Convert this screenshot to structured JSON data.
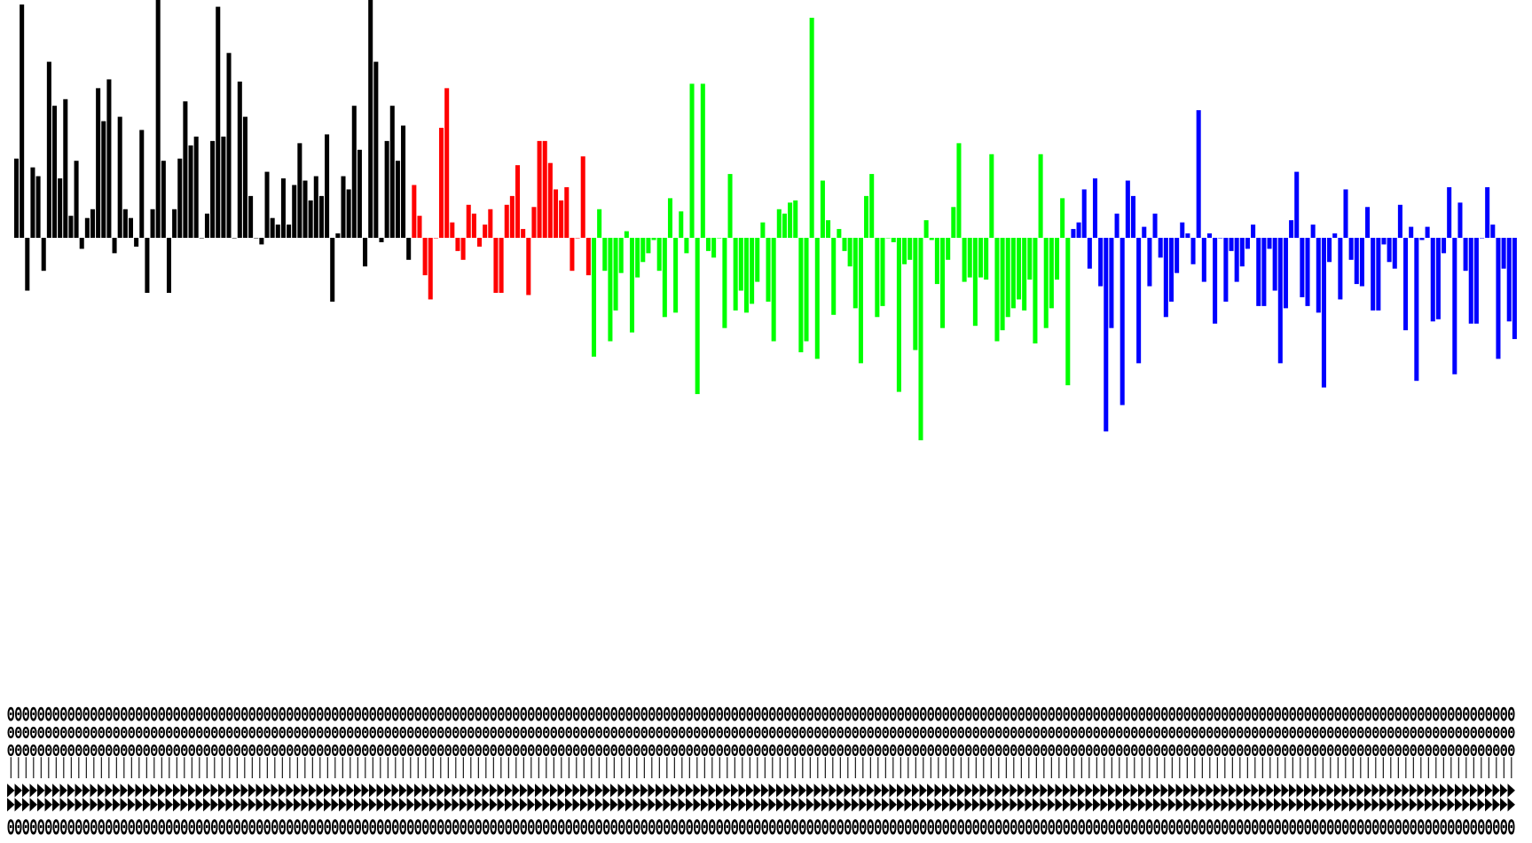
{
  "chart_data": {
    "type": "bar",
    "title": "",
    "xlabel": "",
    "ylabel": "",
    "ylim": [
      -1.0,
      1.4
    ],
    "grid": false,
    "legend": "none",
    "axes_visible": false,
    "category_labels_note": "Rotated category tick labels are overprinted into illegible bands and cannot be transcribed.",
    "series": [
      {
        "color": "#000000",
        "values": [
          0.36,
          1.06,
          -0.24,
          0.32,
          0.28,
          -0.15,
          0.8,
          0.6,
          0.27,
          0.63,
          0.1,
          0.35,
          -0.05,
          0.09,
          0.13,
          0.68,
          0.53,
          0.72,
          -0.07,
          0.55,
          0.13,
          0.09,
          -0.04,
          0.49,
          -0.25,
          0.13,
          1.25,
          0.35,
          -0.25,
          0.13,
          0.36,
          0.62,
          0.42,
          0.46,
          0.0,
          0.11,
          0.44,
          1.05,
          0.46,
          0.84,
          0.0,
          0.71,
          0.55,
          0.19,
          0.0,
          -0.03,
          0.3,
          0.09,
          0.06,
          0.27,
          0.06,
          0.24,
          0.43,
          0.26,
          0.17,
          0.28,
          0.19,
          0.47,
          -0.29,
          0.02,
          0.28,
          0.22,
          0.6,
          0.4,
          -0.13,
          1.1,
          0.8,
          -0.02,
          0.44,
          0.6,
          0.35,
          0.51,
          -0.1
        ],
        "comment": "Series 1 (black): values estimated from bar heights"
      },
      {
        "color": "#ff0000",
        "values": [
          0.24,
          0.1,
          -0.17,
          -0.28,
          0.0,
          0.5,
          0.68,
          0.07,
          -0.06,
          -0.1,
          0.15,
          0.11,
          -0.04,
          0.06,
          0.13,
          -0.25,
          -0.25,
          0.15,
          0.19,
          0.33,
          0.04,
          -0.26,
          0.14,
          0.44,
          0.44,
          0.34,
          0.22,
          0.17,
          0.23,
          -0.15,
          0.0,
          0.37,
          -0.17
        ],
        "comment": "Series 2 (red)"
      },
      {
        "color": "#00ff00",
        "values": [
          -0.54,
          0.13,
          -0.15,
          -0.47,
          -0.33,
          -0.16,
          0.03,
          -0.43,
          -0.18,
          -0.11,
          -0.07,
          -0.01,
          -0.15,
          -0.36,
          0.18,
          -0.34,
          0.12,
          -0.07,
          0.7,
          -0.71,
          0.7,
          -0.06,
          -0.09,
          0.0,
          -0.41,
          0.29,
          -0.33,
          -0.24,
          -0.34,
          -0.3,
          -0.2,
          0.07,
          -0.29,
          -0.47,
          0.13,
          0.11,
          0.16,
          0.17,
          -0.52,
          -0.47,
          1.0,
          -0.55,
          0.26,
          0.08,
          -0.35,
          0.04,
          -0.06,
          -0.13,
          -0.32,
          -0.57,
          0.19,
          0.29,
          -0.36,
          -0.31,
          0.0,
          -0.02,
          -0.7,
          -0.12,
          -0.1,
          -0.51,
          -0.92,
          0.08,
          -0.01,
          -0.21,
          -0.41,
          -0.1,
          0.14,
          0.43,
          -0.2,
          -0.18,
          -0.4,
          -0.18,
          -0.19,
          0.38,
          -0.47,
          -0.42,
          -0.36,
          -0.32,
          -0.28,
          -0.33,
          -0.19,
          -0.48,
          0.38,
          -0.41,
          -0.32,
          -0.19,
          0.18,
          -0.67
        ],
        "comment": "Series 3 (green)"
      },
      {
        "color": "#0000ff",
        "values": [
          0.04,
          0.07,
          0.22,
          -0.14,
          0.27,
          -0.22,
          -0.88,
          -0.41,
          0.11,
          -0.76,
          0.26,
          0.19,
          -0.57,
          0.05,
          -0.22,
          0.11,
          -0.09,
          -0.36,
          -0.29,
          -0.16,
          0.07,
          0.02,
          -0.12,
          0.58,
          -0.2,
          0.02,
          -0.39,
          0.0,
          -0.29,
          -0.06,
          -0.2,
          -0.13,
          -0.05,
          0.06,
          -0.31,
          -0.31,
          -0.05,
          -0.24,
          -0.57,
          -0.32,
          0.08,
          0.3,
          -0.27,
          -0.31,
          0.06,
          -0.34,
          -0.68,
          -0.11,
          0.02,
          -0.28,
          0.22,
          -0.1,
          -0.21,
          -0.22,
          0.14,
          -0.33,
          -0.33,
          -0.03,
          -0.11,
          -0.14,
          0.15,
          -0.42,
          0.05,
          -0.65,
          -0.01,
          0.05,
          -0.38,
          -0.37,
          -0.07,
          0.23,
          -0.62,
          0.16,
          -0.15,
          -0.39,
          -0.39,
          0.0,
          0.23,
          0.06,
          -0.55,
          -0.14,
          -0.38,
          -0.46
        ],
        "comment": "Series 4 (blue)"
      }
    ]
  }
}
